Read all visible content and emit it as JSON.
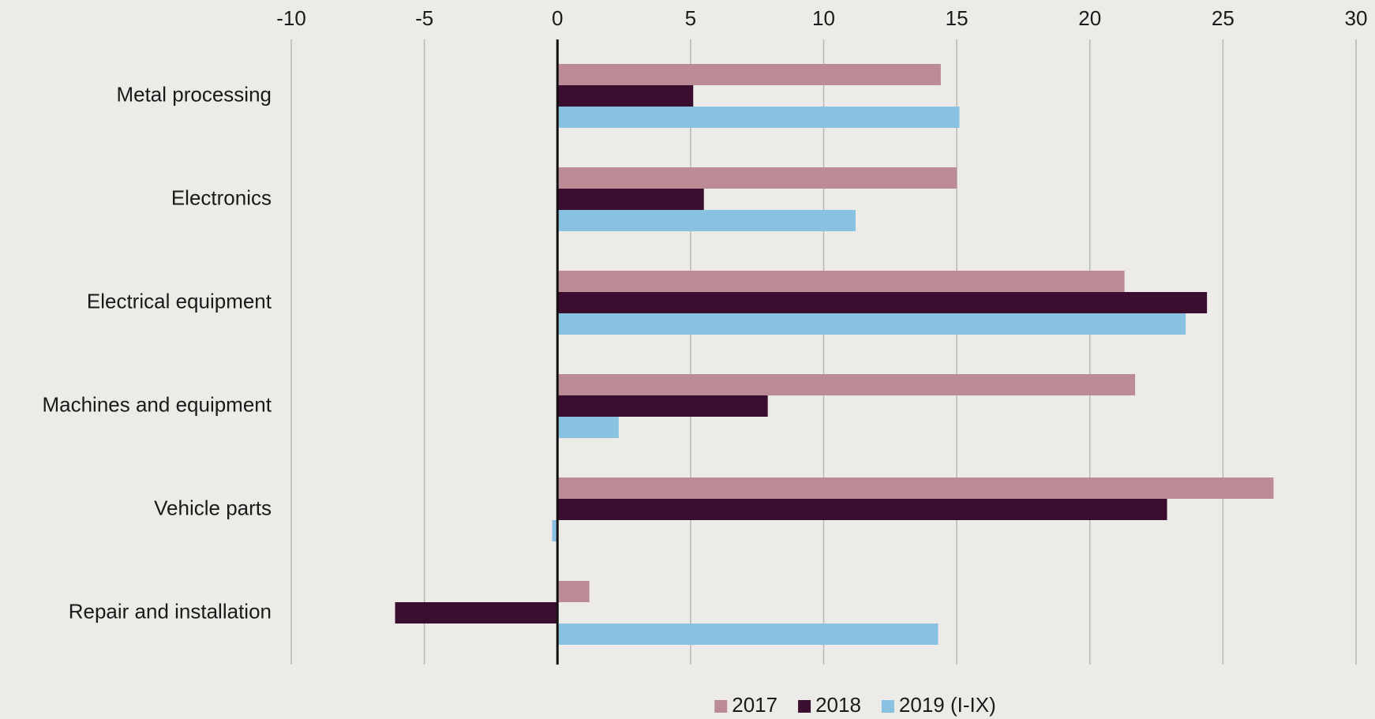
{
  "chart_data": {
    "type": "hbar",
    "categories": [
      "Metal processing",
      "Electronics",
      "Electrical equipment",
      "Machines and equipment",
      "Vehicle parts",
      "Repair and installation"
    ],
    "series": [
      {
        "name": "2017",
        "color": "#bb8c95",
        "values": [
          14.4,
          15.0,
          21.3,
          21.7,
          26.9,
          1.2
        ]
      },
      {
        "name": "2018",
        "color": "#3b0d2e",
        "values": [
          5.1,
          5.5,
          24.4,
          7.9,
          22.9,
          -6.1
        ]
      },
      {
        "name": "2019 (I-IX)",
        "color": "#89c2e0",
        "values": [
          15.1,
          11.2,
          23.6,
          2.3,
          -0.2,
          14.3
        ]
      }
    ],
    "xlim": [
      -10,
      30
    ],
    "xticks": [
      -10,
      -5,
      0,
      5,
      10,
      15,
      20,
      25,
      30
    ],
    "grid": true,
    "legend": "bottom"
  }
}
